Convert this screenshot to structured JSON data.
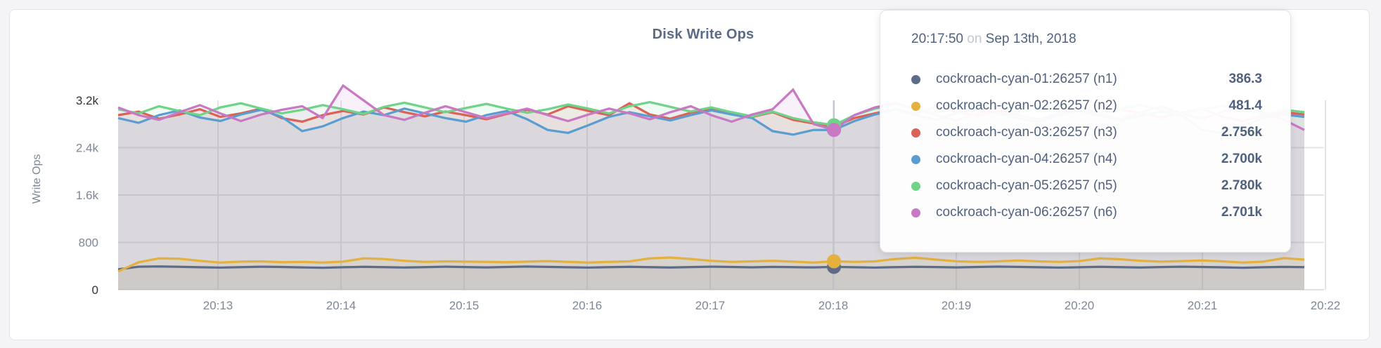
{
  "page": {
    "background": "#f4f4f6",
    "card_border": "#e3e3e7"
  },
  "chart_data": {
    "type": "line",
    "title": "Disk Write Ops",
    "ylabel": "Write Ops",
    "ylim": [
      0,
      3200
    ],
    "grid": true,
    "colors": {
      "grid": "#e4e4e8",
      "baseline": "#d9d9dd",
      "crosshair": "#c7c7cb",
      "tick_text": "#7e8798",
      "tick_text_emph": "#30333c",
      "axis_title_text": "#7e8798"
    },
    "y_ticks": [
      {
        "label": "0",
        "value": 0,
        "emph": true
      },
      {
        "label": "800",
        "value": 800,
        "emph": false
      },
      {
        "label": "1.6k",
        "value": 1600,
        "emph": false
      },
      {
        "label": "2.4k",
        "value": 2400,
        "emph": false
      },
      {
        "label": "3.2k",
        "value": 3200,
        "emph": true
      }
    ],
    "x_ticks": [
      "20:13",
      "20:14",
      "20:15",
      "20:16",
      "20:17",
      "20:18",
      "20:19",
      "20:20",
      "20:21",
      "20:22"
    ],
    "sample_interval_seconds": 10,
    "hover_index": 35,
    "series": [
      {
        "id": "n1",
        "name": "cockroach-cyan-01:26257 (n1)",
        "color": "#5F6C87",
        "values": [
          345,
          390,
          395,
          388,
          380,
          375,
          382,
          390,
          385,
          378,
          372,
          380,
          388,
          382,
          376,
          383,
          390,
          384,
          378,
          385,
          392,
          386,
          380,
          374,
          382,
          388,
          383,
          377,
          384,
          390,
          385,
          379,
          386,
          382,
          378,
          386.3,
          380,
          375,
          383,
          389,
          384,
          378,
          385,
          391,
          386,
          380,
          374,
          381,
          388,
          383,
          377,
          384,
          390,
          385,
          379,
          372,
          380,
          386,
          382
        ]
      },
      {
        "id": "n2",
        "name": "cockroach-cyan-02:26257 (n2)",
        "color": "#E4B13F",
        "values": [
          310,
          465,
          530,
          525,
          490,
          460,
          475,
          480,
          465,
          470,
          460,
          475,
          530,
          520,
          490,
          470,
          480,
          475,
          470,
          465,
          475,
          485,
          470,
          460,
          470,
          480,
          530,
          545,
          520,
          490,
          470,
          480,
          490,
          475,
          460,
          481.4,
          470,
          480,
          520,
          540,
          510,
          480,
          470,
          480,
          495,
          480,
          470,
          485,
          530,
          515,
          490,
          475,
          485,
          495,
          480,
          460,
          475,
          535,
          510
        ]
      },
      {
        "id": "n3",
        "name": "cockroach-cyan-03:26257 (n3)",
        "color": "#DC6156",
        "values": [
          2950,
          3010,
          2890,
          2960,
          3050,
          2920,
          2980,
          3060,
          2900,
          2840,
          2950,
          3020,
          2960,
          3080,
          3000,
          2930,
          3010,
          2950,
          2880,
          2970,
          3040,
          2960,
          3100,
          3020,
          2950,
          3150,
          2960,
          2890,
          2990,
          3060,
          2980,
          2920,
          3000,
          2870,
          2810,
          2756,
          2900,
          2980,
          3050,
          2970,
          3090,
          3010,
          2940,
          3020,
          2950,
          2880,
          2960,
          3030,
          2970,
          3050,
          2980,
          2910,
          2990,
          3060,
          2920,
          2850,
          2940,
          3000,
          2960
        ]
      },
      {
        "id": "n4",
        "name": "cockroach-cyan-04:26257 (n4)",
        "color": "#5C9DD1",
        "values": [
          2900,
          2820,
          2950,
          3030,
          2910,
          2850,
          2960,
          3040,
          2920,
          2680,
          2760,
          2900,
          3010,
          2950,
          3060,
          2980,
          2900,
          2840,
          2950,
          3020,
          2880,
          2700,
          2650,
          2780,
          2920,
          3000,
          2930,
          2860,
          2950,
          3030,
          2960,
          2900,
          2680,
          2620,
          2700,
          2700,
          2850,
          2960,
          3040,
          2950,
          2870,
          2990,
          3060,
          2980,
          2900,
          2830,
          2950,
          3020,
          2940,
          2860,
          2940,
          3010,
          2950,
          2700,
          2650,
          2780,
          2900,
          2960,
          2920
        ]
      },
      {
        "id": "n5",
        "name": "cockroach-cyan-05:26257 (n5)",
        "color": "#6FD388",
        "values": [
          3050,
          2980,
          3100,
          3020,
          2950,
          3080,
          3150,
          3060,
          2980,
          3040,
          3120,
          3050,
          2970,
          3090,
          3160,
          3080,
          3000,
          3070,
          3140,
          3060,
          2990,
          3050,
          3130,
          3060,
          2980,
          3100,
          3170,
          3090,
          3010,
          3080,
          3000,
          2930,
          3010,
          2900,
          2830,
          2780,
          2950,
          3060,
          3140,
          3060,
          2990,
          3070,
          3150,
          3070,
          3000,
          3060,
          3130,
          3050,
          2980,
          3060,
          3120,
          3040,
          2970,
          3050,
          3110,
          3030,
          2960,
          3040,
          3000
        ]
      },
      {
        "id": "n6",
        "name": "cockroach-cyan-06:26257 (n6)",
        "color": "#C979C4",
        "values": [
          3080,
          2950,
          2870,
          3000,
          3120,
          2980,
          2850,
          2960,
          3040,
          3100,
          2900,
          3450,
          3200,
          2950,
          2870,
          2990,
          3100,
          3000,
          2900,
          2980,
          3060,
          2950,
          2850,
          2960,
          3060,
          2980,
          2880,
          3000,
          3100,
          2950,
          2840,
          2960,
          3050,
          3380,
          2800,
          2701,
          2950,
          3080,
          3150,
          3060,
          2950,
          2860,
          2980,
          3080,
          2960,
          2870,
          2990,
          3090,
          2970,
          2880,
          3000,
          3100,
          2980,
          2890,
          3010,
          3110,
          2990,
          2870,
          2700
        ]
      }
    ]
  },
  "tooltip": {
    "time": "20:17:50",
    "conjunction": "on",
    "date": "Sep 13th, 2018",
    "rows": [
      {
        "label": "cockroach-cyan-01:26257 (n1)",
        "value": "386.3",
        "color": "#5F6C87"
      },
      {
        "label": "cockroach-cyan-02:26257 (n2)",
        "value": "481.4",
        "color": "#E4B13F"
      },
      {
        "label": "cockroach-cyan-03:26257 (n3)",
        "value": "2.756k",
        "color": "#DC6156"
      },
      {
        "label": "cockroach-cyan-04:26257 (n4)",
        "value": "2.700k",
        "color": "#5C9DD1"
      },
      {
        "label": "cockroach-cyan-05:26257 (n5)",
        "value": "2.780k",
        "color": "#6FD388"
      },
      {
        "label": "cockroach-cyan-06:26257 (n6)",
        "value": "2.701k",
        "color": "#C979C4"
      }
    ]
  }
}
